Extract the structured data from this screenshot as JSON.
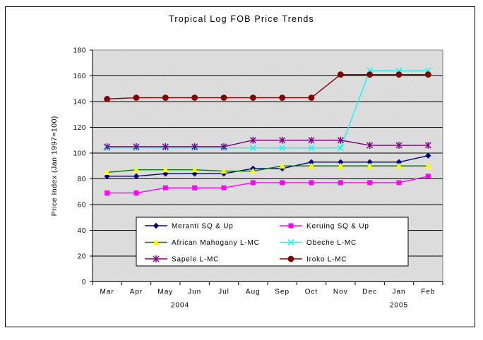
{
  "chart_data": {
    "type": "line",
    "title": "Tropical Log FOB Price Trends",
    "ylabel": "Price Index (Jan 1997=100)",
    "xlabel": "",
    "grid": true,
    "legend_position": "bottom-center-box",
    "ylim": [
      0,
      180
    ],
    "ytick_step": 20,
    "ytick_labels": [
      "0",
      "20",
      "40",
      "60",
      "80",
      "100",
      "120",
      "140",
      "160",
      "180"
    ],
    "categories": [
      "Mar",
      "Apr",
      "May",
      "Jun",
      "Jul",
      "Aug",
      "Sep",
      "Oct",
      "Nov",
      "Dec",
      "Jan",
      "Feb"
    ],
    "year_labels": [
      {
        "label": "2004",
        "month_index": 2.5
      },
      {
        "label": "2005",
        "month_index": 10
      }
    ],
    "plot_bg_colors": [
      "#e2e2e2",
      "#d6d6d6"
    ],
    "series": [
      {
        "name": "Meranti SQ & Up",
        "color": "#000080",
        "marker": "diamond",
        "marker_color": "#000080",
        "values": [
          82,
          82,
          84,
          84,
          84,
          88,
          88,
          93,
          93,
          93,
          93,
          98
        ]
      },
      {
        "name": "Keruing SQ & Up",
        "color": "#ff00ff",
        "marker": "square",
        "marker_color": "#ff00ff",
        "values": [
          69,
          69,
          73,
          73,
          73,
          77,
          77,
          77,
          77,
          77,
          77,
          82
        ]
      },
      {
        "name": "African Mahogany L-MC",
        "color": "#008000",
        "marker": "triangle",
        "marker_color": "#ffff00",
        "values": [
          85,
          87,
          87,
          87,
          86,
          86,
          90,
          90,
          90,
          90,
          90,
          90
        ]
      },
      {
        "name": "Obeche L-MC",
        "color": "#00ffff",
        "marker": "x",
        "marker_color": "#00ffff",
        "values": [
          104,
          104,
          104,
          104,
          104,
          104,
          104,
          104,
          104,
          164,
          164,
          164
        ]
      },
      {
        "name": "Sapele L-MC",
        "color": "#800080",
        "marker": "star",
        "marker_color": "#800080",
        "values": [
          105,
          105,
          105,
          105,
          105,
          110,
          110,
          110,
          110,
          106,
          106,
          106
        ]
      },
      {
        "name": "Iroko L-MC",
        "color": "#800000",
        "marker": "circle",
        "marker_color": "#800000",
        "values": [
          142,
          143,
          143,
          143,
          143,
          143,
          143,
          143,
          161,
          161,
          161,
          161
        ]
      }
    ],
    "legend_columns": [
      [
        0,
        2,
        4
      ],
      [
        1,
        3,
        5
      ]
    ]
  }
}
